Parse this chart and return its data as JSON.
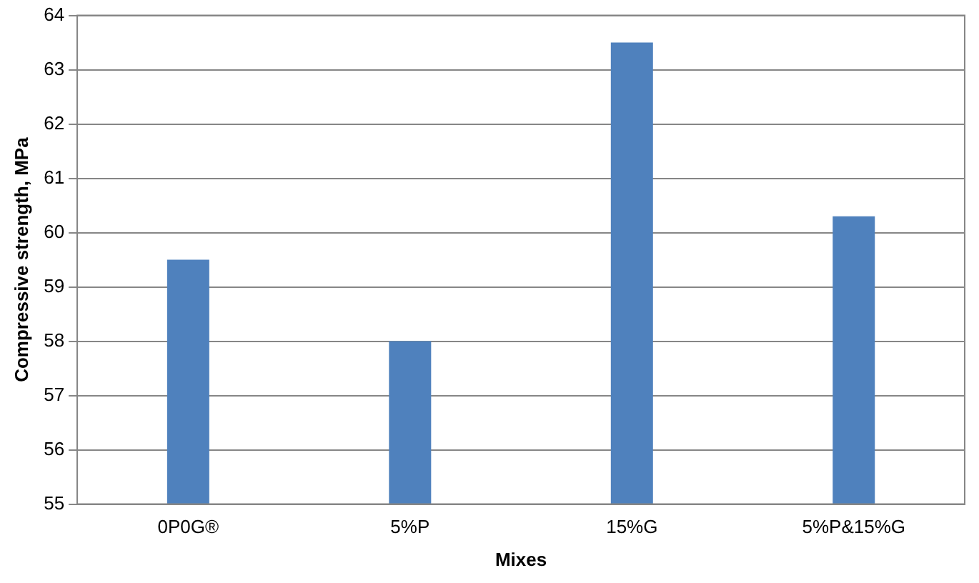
{
  "chart_data": {
    "type": "bar",
    "xlabel": "Mixes",
    "ylabel": "Compressive strength, MPa",
    "categories": [
      "0P0G®",
      "5%P",
      "15%G",
      "5%P&15%G"
    ],
    "values": [
      59.5,
      58.0,
      63.5,
      60.3
    ],
    "color": "#4f81bd",
    "ylim": [
      55,
      64
    ],
    "yticks": [
      55,
      56,
      57,
      58,
      59,
      60,
      61,
      62,
      63,
      64
    ],
    "grid": "y"
  }
}
